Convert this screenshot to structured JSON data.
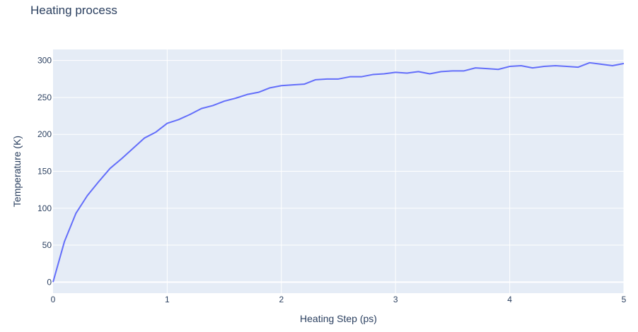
{
  "chart_data": {
    "type": "line",
    "title": "Heating process",
    "xlabel": "Heating Step (ps)",
    "ylabel": "Temperature (K)",
    "xlim": [
      0,
      5
    ],
    "ylim": [
      -15,
      315
    ],
    "x_ticks": [
      0,
      1,
      2,
      3,
      4,
      5
    ],
    "x_tick_labels": [
      "0",
      "1",
      "2",
      "3",
      "4",
      "5"
    ],
    "y_ticks": [
      0,
      50,
      100,
      150,
      200,
      250,
      300
    ],
    "y_tick_labels": [
      "0",
      "50",
      "100",
      "150",
      "200",
      "250",
      "300"
    ],
    "grid": true,
    "legend": false,
    "colors": {
      "plot_background": "#e5ecf6",
      "grid": "#ffffff",
      "line": "#636efa",
      "text": "#2a3f5f"
    },
    "series": [
      {
        "x": [
          0,
          0.1,
          0.2,
          0.3,
          0.4,
          0.5,
          0.6,
          0.7,
          0.8,
          0.9,
          1.0,
          1.1,
          1.2,
          1.3,
          1.4,
          1.5,
          1.6,
          1.7,
          1.8,
          1.9,
          2.0,
          2.1,
          2.2,
          2.3,
          2.4,
          2.5,
          2.6,
          2.7,
          2.8,
          2.9,
          3.0,
          3.1,
          3.2,
          3.3,
          3.4,
          3.5,
          3.6,
          3.7,
          3.8,
          3.9,
          4.0,
          4.1,
          4.2,
          4.3,
          4.4,
          4.5,
          4.6,
          4.7,
          4.8,
          4.9,
          5.0
        ],
        "values": [
          0,
          55,
          93,
          117,
          136,
          154,
          167,
          181,
          195,
          203,
          215,
          220,
          227,
          235,
          239,
          245,
          249,
          254,
          257,
          263,
          266,
          267,
          268,
          274,
          275,
          275,
          278,
          278,
          281,
          282,
          284,
          283,
          285,
          282,
          285,
          286,
          286,
          290,
          289,
          288,
          292,
          293,
          290,
          292,
          293,
          292,
          291,
          297,
          295,
          293,
          296
        ]
      }
    ]
  }
}
